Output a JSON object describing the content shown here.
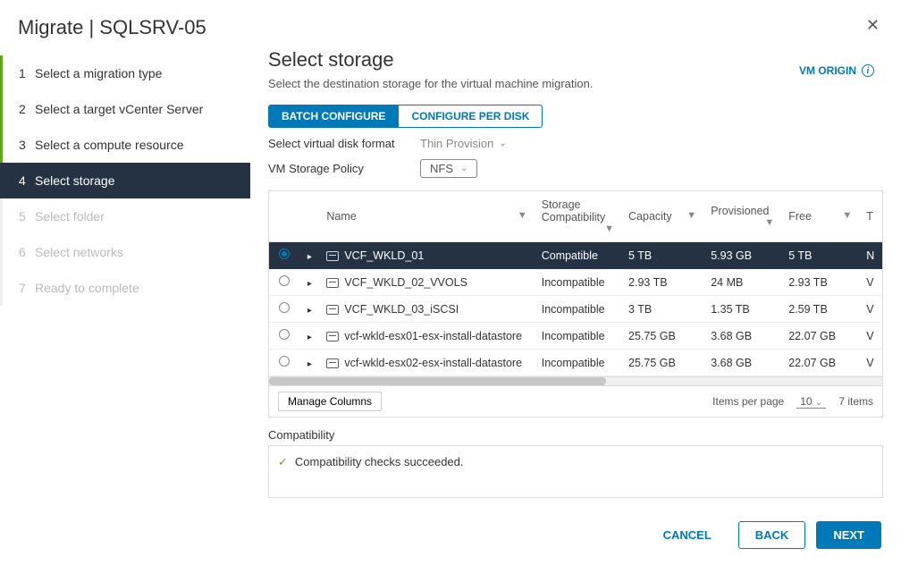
{
  "header": {
    "title": "Migrate | SQLSRV-05"
  },
  "steps": [
    {
      "num": "1",
      "label": "Select a migration type",
      "state": "done"
    },
    {
      "num": "2",
      "label": "Select a target vCenter Server",
      "state": "done"
    },
    {
      "num": "3",
      "label": "Select a compute resource",
      "state": "done"
    },
    {
      "num": "4",
      "label": "Select storage",
      "state": "active"
    },
    {
      "num": "5",
      "label": "Select folder",
      "state": "pending"
    },
    {
      "num": "6",
      "label": "Select networks",
      "state": "pending"
    },
    {
      "num": "7",
      "label": "Ready to complete",
      "state": "pending"
    }
  ],
  "page": {
    "title": "Select storage",
    "subtitle": "Select the destination storage for the virtual machine migration.",
    "vm_origin_label": "VM ORIGIN"
  },
  "tabs": {
    "batch": "BATCH CONFIGURE",
    "per_disk": "CONFIGURE PER DISK"
  },
  "form": {
    "disk_format_label": "Select virtual disk format",
    "disk_format_value": "Thin Provision",
    "policy_label": "VM Storage Policy",
    "policy_value": "NFS"
  },
  "table": {
    "columns": {
      "name": "Name",
      "compat": "Storage Compatibility",
      "capacity": "Capacity",
      "provisioned": "Provisioned",
      "free": "Free",
      "last": "T"
    },
    "rows": [
      {
        "selected": true,
        "name": "VCF_WKLD_01",
        "compat": "Compatible",
        "capacity": "5 TB",
        "provisioned": "5.93 GB",
        "free": "5 TB",
        "last": "N"
      },
      {
        "selected": false,
        "name": "VCF_WKLD_02_VVOLS",
        "compat": "Incompatible",
        "capacity": "2.93 TB",
        "provisioned": "24 MB",
        "free": "2.93 TB",
        "last": "V"
      },
      {
        "selected": false,
        "name": "VCF_WKLD_03_iSCSI",
        "compat": "Incompatible",
        "capacity": "3 TB",
        "provisioned": "1.35 TB",
        "free": "2.59 TB",
        "last": "V"
      },
      {
        "selected": false,
        "name": "vcf-wkld-esx01-esx-install-datastore",
        "compat": "Incompatible",
        "capacity": "25.75 GB",
        "provisioned": "3.68 GB",
        "free": "22.07 GB",
        "last": "V"
      },
      {
        "selected": false,
        "name": "vcf-wkld-esx02-esx-install-datastore",
        "compat": "Incompatible",
        "capacity": "25.75 GB",
        "provisioned": "3.68 GB",
        "free": "22.07 GB",
        "last": "V"
      }
    ],
    "manage_columns": "Manage Columns",
    "items_per_page_label": "Items per page",
    "items_per_page_value": "10",
    "total_items": "7 items"
  },
  "compatibility": {
    "label": "Compatibility",
    "message": "Compatibility checks succeeded."
  },
  "footer": {
    "cancel": "CANCEL",
    "back": "BACK",
    "next": "NEXT"
  },
  "colors": {
    "accent": "#0079b8",
    "dark_row": "#253244",
    "success": "#62a420"
  }
}
